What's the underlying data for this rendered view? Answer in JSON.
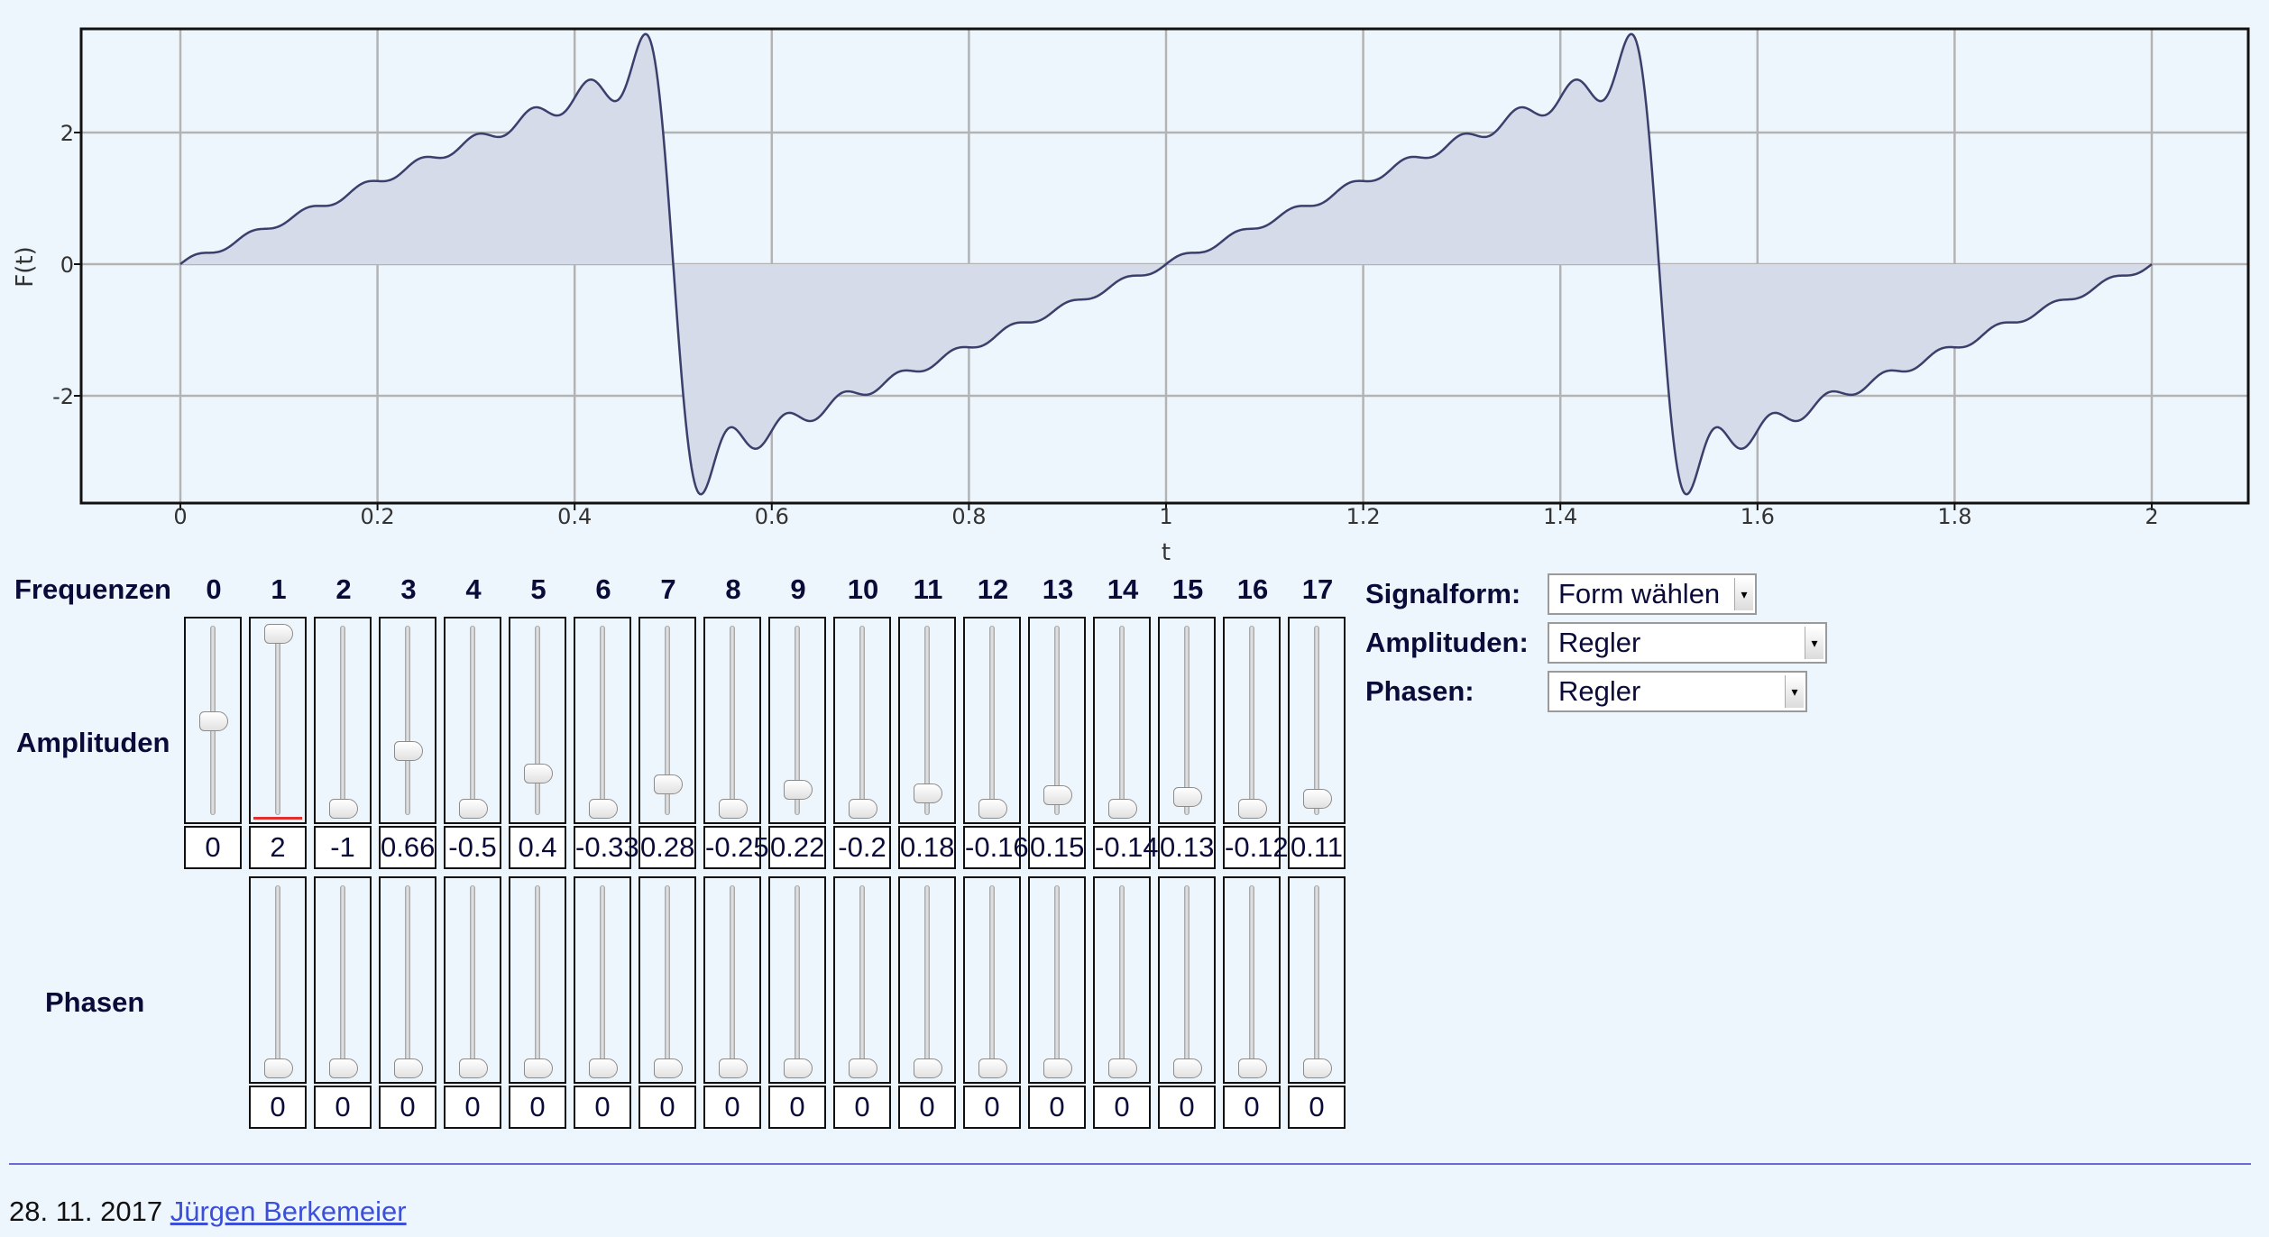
{
  "chart_data": {
    "type": "line",
    "title": "",
    "xlabel": "t",
    "ylabel": "F(t)",
    "xlim": [
      -0.1,
      2.1
    ],
    "ylim": [
      -3.6,
      3.6
    ],
    "x_ticks": [
      "0",
      "0.2",
      "0.4",
      "0.6",
      "0.8",
      "1",
      "1.2",
      "1.4",
      "1.6",
      "1.8",
      "2"
    ],
    "y_ticks": [
      "2",
      "0",
      "-2"
    ],
    "grid": true,
    "fill": true,
    "line_color": "#3b3f6b",
    "fill_color": "#d5dbe9",
    "grid_color": "#b3b3b3",
    "function": "Fourier sum of harmonics 1..17 with amplitudes below, phases 0, over t in [0, 2]"
  },
  "labels": {
    "frequencies": "Frequenzen",
    "amplitudes": "Amplituden",
    "phases": "Phasen"
  },
  "frequencies": [
    "0",
    "1",
    "2",
    "3",
    "4",
    "5",
    "6",
    "7",
    "8",
    "9",
    "10",
    "11",
    "12",
    "13",
    "14",
    "15",
    "16",
    "17"
  ],
  "amplitudes": [
    0,
    2,
    -1,
    0.66,
    -0.5,
    0.4,
    -0.33,
    0.28,
    -0.25,
    0.22,
    -0.2,
    0.18,
    -0.16,
    0.15,
    -0.14,
    0.13,
    -0.12,
    0.11
  ],
  "amplitude_display": [
    "0",
    "2",
    "-1",
    "0.66",
    "-0.5",
    "0.4",
    "-0.33",
    "0.28",
    "-0.25",
    "0.22",
    "-0.2",
    "0.18",
    "-0.16",
    "0.15",
    "-0.14",
    "0.13",
    "-0.12",
    "0.11"
  ],
  "phases": [
    "0",
    "0",
    "0",
    "0",
    "0",
    "0",
    "0",
    "0",
    "0",
    "0",
    "0",
    "0",
    "0",
    "0",
    "0",
    "0",
    "0"
  ],
  "controls": {
    "signalform_label": "Signalform:",
    "signalform_value": "Form wählen",
    "amplituden_label": "Amplituden:",
    "amplituden_value": "Regler",
    "phasen_label": "Phasen:",
    "phasen_value": "Regler"
  },
  "footer": {
    "date": "28. 11. 2017",
    "author": "Jürgen Berkemeier"
  }
}
